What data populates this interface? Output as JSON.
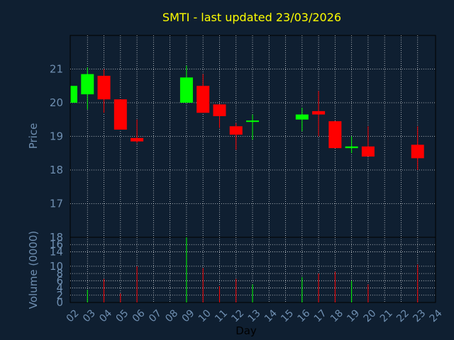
{
  "chart_data": {
    "type": "candlestick",
    "title": "SMTI - last updated 23/03/2026",
    "xlabel": "Day",
    "ylabel_price": "Price",
    "ylabel_volume": "Volume (0000)",
    "x_ticks": [
      "02",
      "03",
      "04",
      "05",
      "06",
      "07",
      "08",
      "09",
      "10",
      "11",
      "12",
      "13",
      "14",
      "15",
      "16",
      "17",
      "18",
      "19",
      "20",
      "21",
      "22",
      "23",
      "24"
    ],
    "price_ticks": [
      17,
      18,
      19,
      20,
      21
    ],
    "price_range": [
      16.0,
      22.0
    ],
    "volume_ticks": [
      0,
      2,
      4,
      6,
      8,
      10,
      14,
      16,
      18
    ],
    "volume_range": [
      0,
      18
    ],
    "grid": true,
    "colors": {
      "up": "#00ff00",
      "down": "#ff0000",
      "grid": "#ffffff",
      "frame": "#000000",
      "background": "#0f1f31"
    },
    "candles": [
      {
        "day": "02",
        "open": 20.0,
        "high": 20.5,
        "low": 20.0,
        "close": 20.5,
        "volume": 0
      },
      {
        "day": "03",
        "open": 20.25,
        "high": 21.05,
        "low": 19.8,
        "close": 20.85,
        "volume": 3.5
      },
      {
        "day": "04",
        "open": 20.8,
        "high": 21.0,
        "low": 19.7,
        "close": 20.1,
        "volume": 6.5
      },
      {
        "day": "05",
        "open": 20.1,
        "high": 20.1,
        "low": 19.2,
        "close": 19.2,
        "volume": 2.5
      },
      {
        "day": "06",
        "open": 18.95,
        "high": 19.5,
        "low": 18.8,
        "close": 18.85,
        "volume": 10
      },
      {
        "day": "09",
        "open": 20.0,
        "high": 21.1,
        "low": 20.0,
        "close": 20.75,
        "volume": 18
      },
      {
        "day": "10",
        "open": 20.5,
        "high": 20.85,
        "low": 19.7,
        "close": 19.7,
        "volume": 9.5
      },
      {
        "day": "11",
        "open": 19.95,
        "high": 19.95,
        "low": 19.25,
        "close": 19.6,
        "volume": 4.5
      },
      {
        "day": "12",
        "open": 19.3,
        "high": 19.4,
        "low": 18.6,
        "close": 19.05,
        "volume": 6.5
      },
      {
        "day": "13",
        "open": 19.45,
        "high": 19.65,
        "low": 18.9,
        "close": 19.47,
        "volume": 5
      },
      {
        "day": "16",
        "open": 19.5,
        "high": 19.85,
        "low": 19.15,
        "close": 19.65,
        "volume": 7
      },
      {
        "day": "17",
        "open": 19.75,
        "high": 20.35,
        "low": 19.0,
        "close": 19.65,
        "volume": 8
      },
      {
        "day": "18",
        "open": 19.45,
        "high": 19.45,
        "low": 18.65,
        "close": 18.65,
        "volume": 8.5
      },
      {
        "day": "19",
        "open": 18.65,
        "high": 19.0,
        "low": 18.5,
        "close": 18.7,
        "volume": 6
      },
      {
        "day": "20",
        "open": 18.7,
        "high": 19.3,
        "low": 18.4,
        "close": 18.4,
        "volume": 5
      },
      {
        "day": "23",
        "open": 18.75,
        "high": 19.3,
        "low": 18.0,
        "close": 18.35,
        "volume": 10.5
      }
    ]
  }
}
